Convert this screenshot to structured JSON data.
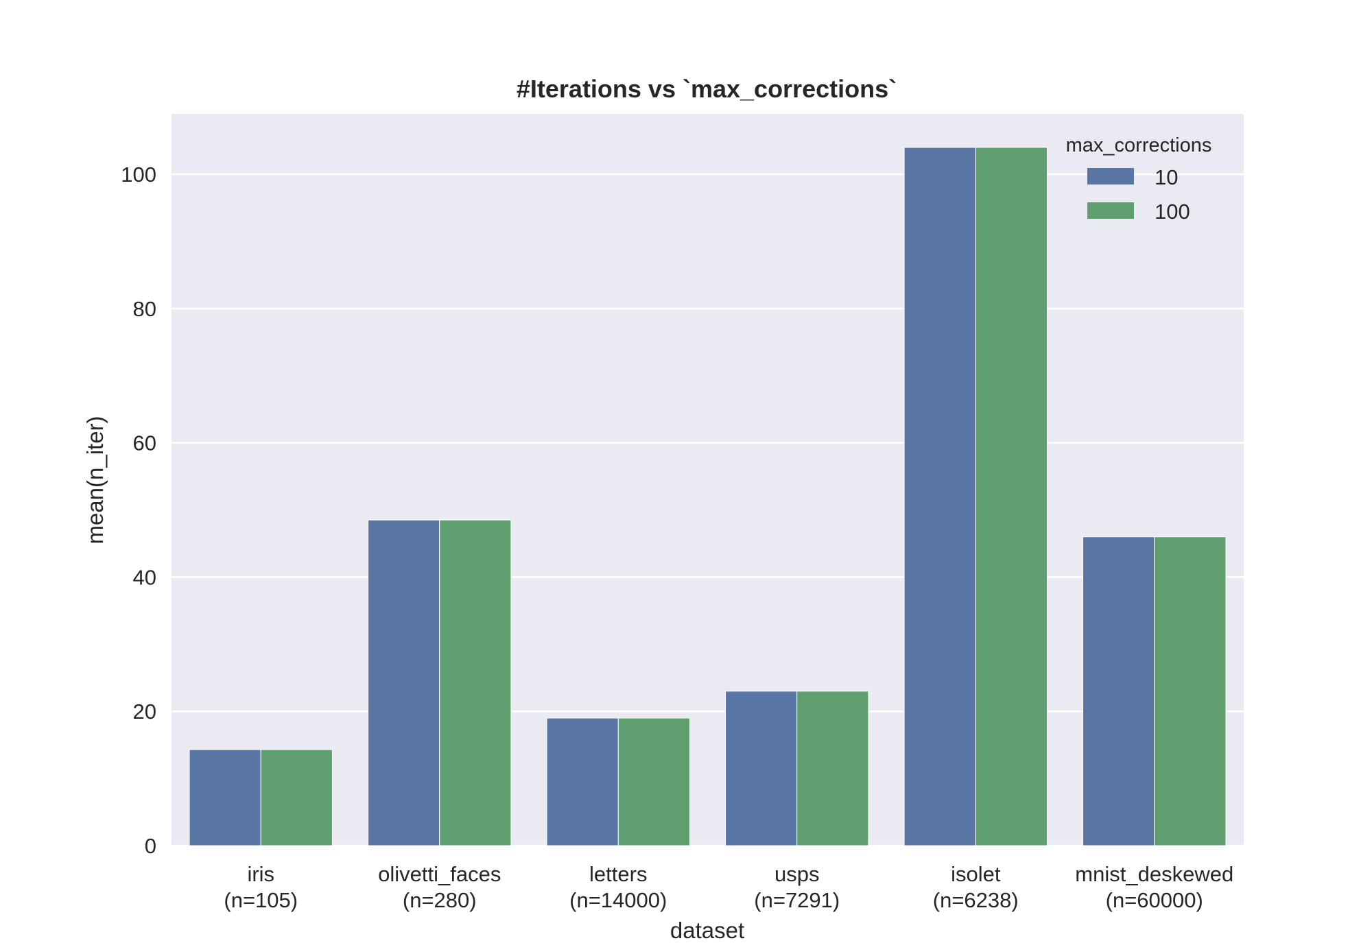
{
  "chart_data": {
    "type": "bar",
    "title": "#Iterations vs `max_corrections`",
    "xlabel": "dataset",
    "ylabel": "mean(n_iter)",
    "categories": [
      [
        "iris",
        "(n=105)"
      ],
      [
        "olivetti_faces",
        "(n=280)"
      ],
      [
        "letters",
        "(n=14000)"
      ],
      [
        "usps",
        "(n=7291)"
      ],
      [
        "isolet",
        "(n=6238)"
      ],
      [
        "mnist_deskewed",
        "(n=60000)"
      ]
    ],
    "series": [
      {
        "name": "10",
        "color": "#5975a4",
        "values": [
          14.3,
          48.5,
          19.0,
          23.0,
          104.0,
          46.0
        ]
      },
      {
        "name": "100",
        "color": "#5f9e6e",
        "values": [
          14.3,
          48.5,
          19.0,
          23.0,
          104.0,
          46.0
        ]
      }
    ],
    "ylim": [
      0,
      109
    ],
    "yticks": [
      0,
      20,
      40,
      60,
      80,
      100
    ],
    "grid": true,
    "legend": {
      "title": "max_corrections",
      "placement": "top-right"
    },
    "background": "#eaeaf2"
  }
}
